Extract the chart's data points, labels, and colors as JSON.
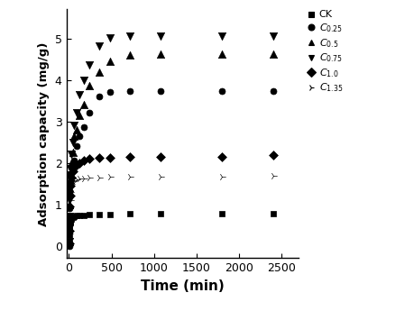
{
  "xlabel": "Time (min)",
  "ylabel": "Adsorption capacity (mg/g)",
  "xlim": [
    -30,
    2700
  ],
  "ylim": [
    -0.3,
    5.7
  ],
  "xticks": [
    0,
    500,
    1000,
    1500,
    2000,
    2500
  ],
  "yticks": [
    0,
    1,
    2,
    3,
    4,
    5
  ],
  "series": [
    {
      "label": "CK",
      "marker": "s",
      "markersize": 5,
      "x": [
        1,
        2,
        5,
        10,
        15,
        20,
        30,
        45,
        60,
        90,
        120,
        180,
        240,
        360,
        480,
        720,
        1080,
        1800,
        2400
      ],
      "y": [
        0.05,
        0.25,
        0.35,
        0.45,
        0.55,
        0.6,
        0.65,
        0.68,
        0.7,
        0.72,
        0.73,
        0.74,
        0.75,
        0.75,
        0.76,
        0.77,
        0.77,
        0.77,
        0.77
      ]
    },
    {
      "label": "C_{0.25}",
      "marker": "o",
      "markersize": 5,
      "x": [
        1,
        2,
        5,
        10,
        15,
        20,
        30,
        45,
        60,
        90,
        120,
        180,
        240,
        360,
        480,
        720,
        1080,
        1800,
        2400
      ],
      "y": [
        0.0,
        0.5,
        0.9,
        1.3,
        1.55,
        1.7,
        1.9,
        2.0,
        2.05,
        2.4,
        2.65,
        2.87,
        3.2,
        3.6,
        3.7,
        3.72,
        3.73,
        3.73,
        3.73
      ]
    },
    {
      "label": "C_{0.5}",
      "marker": "^",
      "markersize": 6,
      "x": [
        1,
        2,
        5,
        10,
        15,
        20,
        30,
        45,
        60,
        90,
        120,
        180,
        240,
        360,
        480,
        720,
        1080,
        1800,
        2400
      ],
      "y": [
        0.1,
        0.6,
        1.0,
        1.4,
        1.6,
        1.75,
        2.0,
        2.25,
        2.65,
        2.8,
        3.15,
        3.4,
        3.87,
        4.18,
        4.45,
        4.6,
        4.62,
        4.62,
        4.62
      ]
    },
    {
      "label": "C_{0.75}",
      "marker": "v",
      "markersize": 6,
      "x": [
        1,
        2,
        5,
        10,
        15,
        20,
        30,
        45,
        60,
        90,
        120,
        180,
        240,
        360,
        480,
        720,
        1080,
        1800,
        2400
      ],
      "y": [
        0.1,
        0.7,
        1.1,
        1.5,
        1.7,
        1.85,
        2.2,
        2.5,
        2.9,
        3.2,
        3.65,
        4.0,
        4.35,
        4.82,
        5.02,
        5.05,
        5.06,
        5.05,
        5.05
      ]
    },
    {
      "label": "C_{1.0}",
      "marker": "D",
      "markersize": 5,
      "x": [
        1,
        2,
        5,
        10,
        15,
        20,
        30,
        45,
        60,
        90,
        120,
        180,
        240,
        360,
        480,
        720,
        1080,
        1800,
        2400
      ],
      "y": [
        0.05,
        0.35,
        0.65,
        0.95,
        1.2,
        1.45,
        1.65,
        1.8,
        1.9,
        1.95,
        2.0,
        2.05,
        2.1,
        2.12,
        2.13,
        2.14,
        2.15,
        2.15,
        2.18
      ]
    },
    {
      "label": "C_{1.35}",
      "marker": "4",
      "markersize": 6,
      "x": [
        1,
        2,
        5,
        10,
        15,
        20,
        30,
        45,
        60,
        90,
        120,
        180,
        240,
        360,
        480,
        720,
        1080,
        1800,
        2400
      ],
      "y": [
        0.05,
        0.3,
        0.6,
        0.9,
        1.1,
        1.3,
        1.48,
        1.56,
        1.58,
        1.6,
        1.62,
        1.63,
        1.64,
        1.65,
        1.66,
        1.67,
        1.67,
        1.67,
        1.68
      ]
    }
  ],
  "legend_display": [
    "CK",
    "C_{0.25}",
    "C_{0.5}",
    "C_{0.75}",
    "C_{1.0}",
    "C_{1.35}"
  ],
  "legend_markers": [
    "s",
    "o",
    "^",
    "v",
    "D",
    "4"
  ],
  "background_color": "#ffffff",
  "font_color": "#000000"
}
